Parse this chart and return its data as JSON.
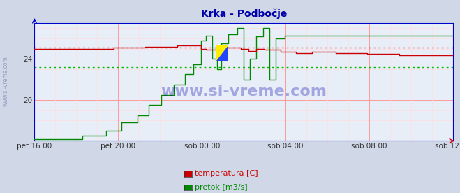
{
  "title": "Krka - Podbočje",
  "title_color": "#0000aa",
  "bg_color": "#d0d8e8",
  "plot_bg_color": "#e8eef8",
  "x_labels": [
    "pet 16:00",
    "pet 20:00",
    "sob 00:00",
    "sob 04:00",
    "sob 08:00",
    "sob 12:00"
  ],
  "x_ticks_norm": [
    0.0,
    0.2,
    0.4,
    0.6,
    0.8,
    1.0
  ],
  "ylim": [
    16.0,
    27.5
  ],
  "yticks": [
    20,
    24
  ],
  "grid_major_color": "#ff9999",
  "grid_minor_color": "#ffdddd",
  "temp_color": "#cc0000",
  "flow_color": "#008800",
  "avg_temp_color": "#ee3333",
  "avg_flow_color": "#00bb00",
  "axis_color": "#0000cc",
  "avg_temp": 25.1,
  "avg_flow": 23.2,
  "watermark": "www.si-vreme.com",
  "watermark_color": "#0000aa",
  "legend_temp": "temperatura [C]",
  "legend_flow": "pretok [m3/s]",
  "left_label": "www.si-vreme.com",
  "left_label_color": "#8899bb"
}
